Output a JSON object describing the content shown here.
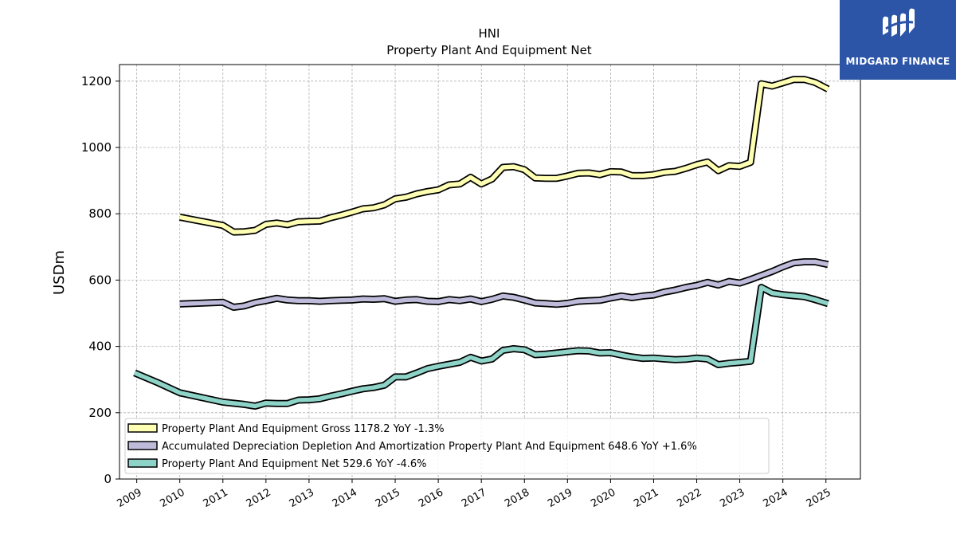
{
  "brand": {
    "name": "MIDGARD FINANCE",
    "bg_color": "#2c55a8"
  },
  "chart_data": {
    "type": "line",
    "title": "HNI",
    "subtitle": "Property Plant And Equipment Net",
    "xlabel": "",
    "ylabel": "USDm",
    "ylim": [
      0,
      1250
    ],
    "xlim": [
      2008.6,
      2025.8
    ],
    "yticks": [
      0,
      200,
      400,
      600,
      800,
      1000,
      1200
    ],
    "xticks": [
      "2009",
      "2010",
      "2011",
      "2012",
      "2013",
      "2014",
      "2015",
      "2016",
      "2017",
      "2018",
      "2019",
      "2020",
      "2021",
      "2022",
      "2023",
      "2024",
      "2025"
    ],
    "grid": true,
    "legend_position": "lower-left",
    "series": [
      {
        "name": "Property Plant And Equipment Gross",
        "legend_label": "Property Plant And Equipment Gross  1178.2 YoY -1.3%",
        "color": "#ffffb3",
        "points": [
          [
            2010.0,
            790
          ],
          [
            2011.0,
            765
          ],
          [
            2011.25,
            745
          ],
          [
            2011.5,
            746
          ],
          [
            2011.75,
            750
          ],
          [
            2012.0,
            768
          ],
          [
            2012.25,
            772
          ],
          [
            2012.5,
            767
          ],
          [
            2012.75,
            776
          ],
          [
            2013.0,
            777
          ],
          [
            2013.25,
            778
          ],
          [
            2013.5,
            788
          ],
          [
            2013.75,
            796
          ],
          [
            2014.0,
            805
          ],
          [
            2014.25,
            815
          ],
          [
            2014.5,
            818
          ],
          [
            2014.75,
            827
          ],
          [
            2015.0,
            845
          ],
          [
            2015.25,
            850
          ],
          [
            2015.5,
            860
          ],
          [
            2015.75,
            867
          ],
          [
            2016.0,
            872
          ],
          [
            2016.25,
            887
          ],
          [
            2016.5,
            890
          ],
          [
            2016.75,
            910
          ],
          [
            2017.0,
            890
          ],
          [
            2017.25,
            905
          ],
          [
            2017.5,
            940
          ],
          [
            2017.75,
            942
          ],
          [
            2018.0,
            933
          ],
          [
            2018.25,
            908
          ],
          [
            2018.5,
            907
          ],
          [
            2018.75,
            907
          ],
          [
            2019.0,
            914
          ],
          [
            2019.25,
            922
          ],
          [
            2019.5,
            923
          ],
          [
            2019.75,
            918
          ],
          [
            2020.0,
            927
          ],
          [
            2020.25,
            926
          ],
          [
            2020.5,
            915
          ],
          [
            2020.75,
            915
          ],
          [
            2021.0,
            918
          ],
          [
            2021.25,
            925
          ],
          [
            2021.5,
            928
          ],
          [
            2021.75,
            937
          ],
          [
            2022.0,
            948
          ],
          [
            2022.25,
            956
          ],
          [
            2022.5,
            930
          ],
          [
            2022.75,
            945
          ],
          [
            2023.0,
            943
          ],
          [
            2023.25,
            955
          ],
          [
            2023.5,
            1192
          ],
          [
            2023.75,
            1185
          ],
          [
            2024.0,
            1195
          ],
          [
            2024.25,
            1205
          ],
          [
            2024.5,
            1205
          ],
          [
            2024.75,
            1196
          ],
          [
            2025.05,
            1176
          ]
        ]
      },
      {
        "name": "Accumulated Depreciation Depletion And Amortization Property Plant And Equipment",
        "legend_label": "Accumulated Depreciation Depletion And Amortization Property Plant And Equipment  648.6 YoY +1.6%",
        "color": "#bebada",
        "points": [
          [
            2010.0,
            528
          ],
          [
            2011.0,
            533
          ],
          [
            2011.25,
            518
          ],
          [
            2011.5,
            522
          ],
          [
            2011.75,
            532
          ],
          [
            2012.0,
            538
          ],
          [
            2012.25,
            545
          ],
          [
            2012.5,
            540
          ],
          [
            2012.75,
            538
          ],
          [
            2013.0,
            538
          ],
          [
            2013.25,
            536
          ],
          [
            2013.5,
            538
          ],
          [
            2013.75,
            539
          ],
          [
            2014.0,
            540
          ],
          [
            2014.25,
            543
          ],
          [
            2014.5,
            542
          ],
          [
            2014.75,
            544
          ],
          [
            2015.0,
            536
          ],
          [
            2015.25,
            540
          ],
          [
            2015.5,
            541
          ],
          [
            2015.75,
            536
          ],
          [
            2016.0,
            535
          ],
          [
            2016.25,
            541
          ],
          [
            2016.5,
            538
          ],
          [
            2016.75,
            543
          ],
          [
            2017.0,
            535
          ],
          [
            2017.25,
            542
          ],
          [
            2017.5,
            552
          ],
          [
            2017.75,
            548
          ],
          [
            2018.0,
            540
          ],
          [
            2018.25,
            531
          ],
          [
            2018.5,
            529
          ],
          [
            2018.75,
            527
          ],
          [
            2019.0,
            530
          ],
          [
            2019.25,
            536
          ],
          [
            2019.5,
            538
          ],
          [
            2019.75,
            539
          ],
          [
            2020.0,
            546
          ],
          [
            2020.25,
            552
          ],
          [
            2020.5,
            547
          ],
          [
            2020.75,
            552
          ],
          [
            2021.0,
            555
          ],
          [
            2021.25,
            564
          ],
          [
            2021.5,
            570
          ],
          [
            2021.75,
            578
          ],
          [
            2022.0,
            584
          ],
          [
            2022.25,
            593
          ],
          [
            2022.5,
            585
          ],
          [
            2022.75,
            596
          ],
          [
            2023.0,
            591
          ],
          [
            2023.25,
            602
          ],
          [
            2023.5,
            614
          ],
          [
            2023.75,
            626
          ],
          [
            2024.0,
            640
          ],
          [
            2024.25,
            652
          ],
          [
            2024.5,
            655
          ],
          [
            2024.75,
            655
          ],
          [
            2025.05,
            647
          ]
        ]
      },
      {
        "name": "Property Plant And Equipment Net",
        "legend_label": "Property Plant And Equipment Net  529.6 YoY -4.6%",
        "color": "#8dd3c7",
        "points": [
          [
            2008.95,
            320
          ],
          [
            2009.5,
            290
          ],
          [
            2010.0,
            260
          ],
          [
            2011.0,
            232
          ],
          [
            2011.5,
            225
          ],
          [
            2011.75,
            220
          ],
          [
            2012.0,
            229
          ],
          [
            2012.25,
            228
          ],
          [
            2012.5,
            228
          ],
          [
            2012.75,
            238
          ],
          [
            2013.0,
            239
          ],
          [
            2013.25,
            242
          ],
          [
            2013.5,
            250
          ],
          [
            2013.75,
            257
          ],
          [
            2014.0,
            265
          ],
          [
            2014.25,
            272
          ],
          [
            2014.5,
            276
          ],
          [
            2014.75,
            283
          ],
          [
            2015.0,
            308
          ],
          [
            2015.25,
            308
          ],
          [
            2015.5,
            320
          ],
          [
            2015.75,
            333
          ],
          [
            2016.0,
            340
          ],
          [
            2016.25,
            346
          ],
          [
            2016.5,
            352
          ],
          [
            2016.75,
            367
          ],
          [
            2017.0,
            356
          ],
          [
            2017.25,
            362
          ],
          [
            2017.5,
            388
          ],
          [
            2017.75,
            393
          ],
          [
            2018.0,
            390
          ],
          [
            2018.25,
            375
          ],
          [
            2018.5,
            377
          ],
          [
            2018.75,
            380
          ],
          [
            2019.0,
            384
          ],
          [
            2019.25,
            387
          ],
          [
            2019.5,
            386
          ],
          [
            2019.75,
            380
          ],
          [
            2020.0,
            381
          ],
          [
            2020.25,
            374
          ],
          [
            2020.5,
            368
          ],
          [
            2020.75,
            364
          ],
          [
            2021.0,
            365
          ],
          [
            2021.25,
            362
          ],
          [
            2021.5,
            360
          ],
          [
            2021.75,
            361
          ],
          [
            2022.0,
            365
          ],
          [
            2022.25,
            362
          ],
          [
            2022.5,
            345
          ],
          [
            2022.75,
            349
          ],
          [
            2023.0,
            352
          ],
          [
            2023.25,
            355
          ],
          [
            2023.5,
            578
          ],
          [
            2023.75,
            561
          ],
          [
            2024.0,
            556
          ],
          [
            2024.25,
            553
          ],
          [
            2024.5,
            550
          ],
          [
            2024.75,
            541
          ],
          [
            2025.05,
            529
          ]
        ]
      }
    ]
  }
}
